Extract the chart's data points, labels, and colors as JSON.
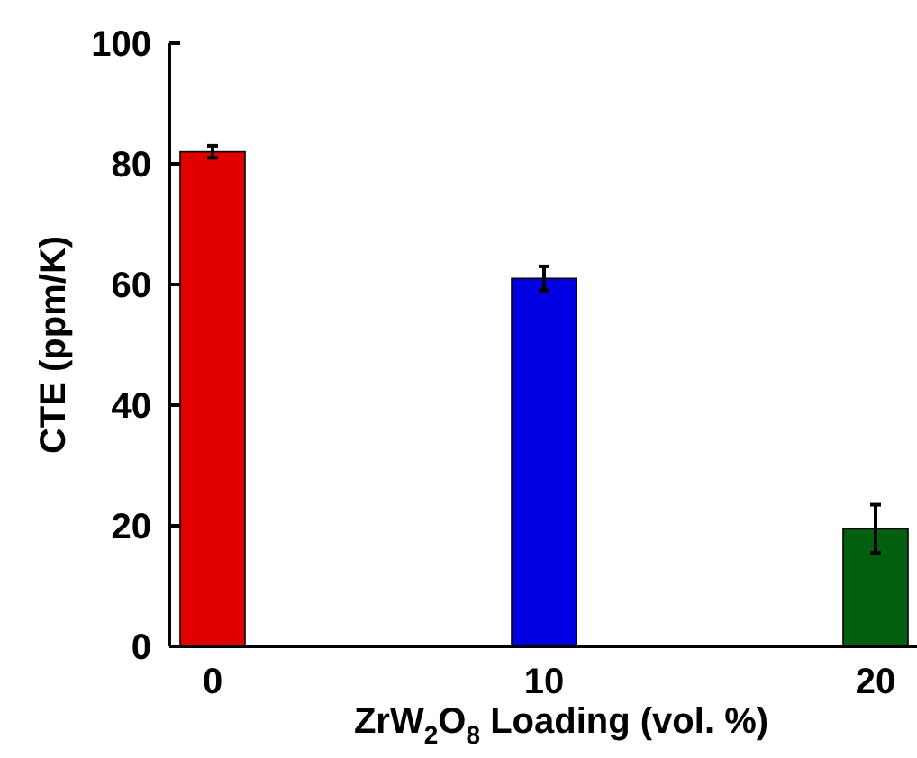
{
  "chart_data": {
    "type": "bar",
    "xlabel": "ZrW$_{2}$O$_{8}$ Loading (vol. %)",
    "ylabel": "CTE (ppm/K)",
    "categories": [
      "0",
      "10",
      "20"
    ],
    "values": [
      82,
      61,
      19.5
    ],
    "errors": [
      1,
      2,
      4
    ],
    "colors": [
      "#e00000",
      "#0000e0",
      "#006010"
    ],
    "ylim": [
      0,
      100
    ],
    "yticks": [
      0,
      20,
      40,
      60,
      80,
      100
    ],
    "grid": false
  }
}
